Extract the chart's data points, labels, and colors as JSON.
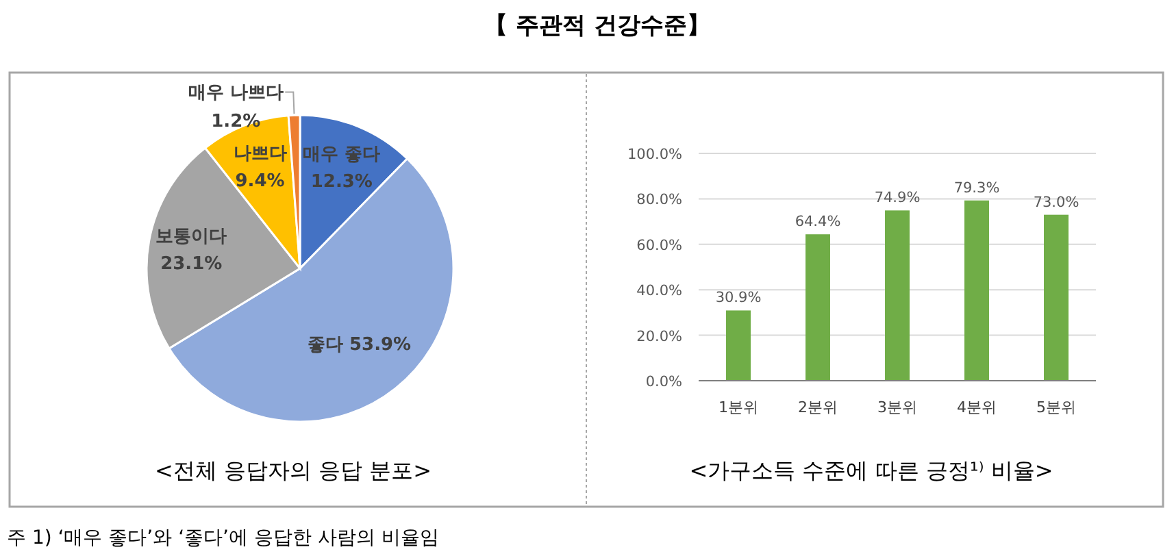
{
  "chart_data": [
    {
      "type": "pie",
      "title": "【 주관적 건강수준】",
      "subtitle": "<전체 응답자의 응답 분포>",
      "categories": [
        "매우 좋다",
        "좋다",
        "보통이다",
        "나쁘다",
        "매우 나쁘다"
      ],
      "values": [
        12.3,
        53.9,
        23.1,
        9.4,
        1.2
      ],
      "colors": [
        "#4472c4",
        "#8faadc",
        "#a5a5a5",
        "#ffc000",
        "#ed7d31"
      ],
      "value_labels": [
        "12.3%",
        "53.9%",
        "23.1%",
        "9.4%",
        "1.2%"
      ]
    },
    {
      "type": "bar",
      "title": "<가구소득 수준에 따른 긍정¹⁾ 비율>",
      "categories": [
        "1분위",
        "2분위",
        "3분위",
        "4분위",
        "5분위"
      ],
      "values": [
        30.9,
        64.4,
        74.9,
        79.3,
        73.0
      ],
      "color": "#70ad47",
      "ylim": [
        0,
        100
      ],
      "yticks": [
        {
          "value": 0,
          "label": "0.0%"
        },
        {
          "value": 20,
          "label": "20.0%"
        },
        {
          "value": 40,
          "label": "40.0%"
        },
        {
          "value": 60,
          "label": "60.0%"
        },
        {
          "value": 80,
          "label": "80.0%"
        },
        {
          "value": 100,
          "label": "100.0%"
        }
      ],
      "grid": "y",
      "value_labels": [
        "30.9%",
        "64.4%",
        "74.9%",
        "79.3%",
        "73.0%"
      ],
      "annotations": [
        "주 1) ‘매우 좋다’와 ‘좋다’에 응답한 사람의 비율임"
      ]
    }
  ]
}
